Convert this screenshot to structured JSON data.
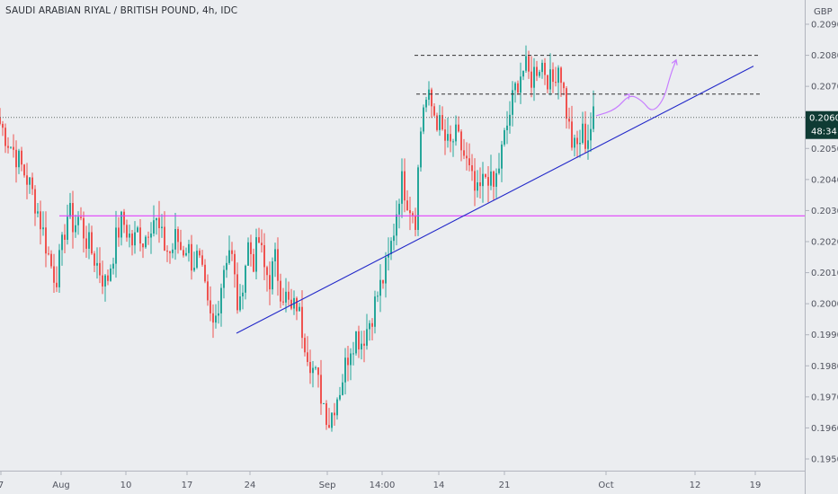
{
  "header": {
    "title": "SAUDI ARABIAN RIYAL / BRITISH POUND, 4h, IDC"
  },
  "price_axis": {
    "currency": "GBP"
  },
  "last_price": {
    "label": "0.2060",
    "countdown": "48:34",
    "value": 0.206
  },
  "colors": {
    "up": "#26a69a",
    "down": "#ef5350",
    "trend": "#2329c9",
    "support": "#e040fb",
    "projection": "#c77dff",
    "badge": "#0f3b34",
    "resistance": "#333333"
  },
  "chart_data": {
    "type": "candlestick",
    "symbol": "SAUDI ARABIAN RIYAL / BRITISH POUND",
    "timeframe": "4h",
    "source": "IDC",
    "y_axis": {
      "label": "GBP",
      "range": [
        0.1945,
        0.2095
      ],
      "ticks": [
        0.195,
        0.196,
        0.197,
        0.198,
        0.199,
        0.2,
        0.201,
        0.202,
        0.203,
        0.204,
        0.205,
        0.206,
        0.207,
        0.208,
        0.209
      ]
    },
    "x_axis": {
      "range": [
        0,
        850
      ],
      "ticks": [
        {
          "label": "7",
          "x": 1
        },
        {
          "label": "Aug",
          "x": 68
        },
        {
          "label": "10",
          "x": 140
        },
        {
          "label": "17",
          "x": 208
        },
        {
          "label": "24",
          "x": 278
        },
        {
          "label": "Sep",
          "x": 364
        },
        {
          "label": "14:00",
          "x": 425
        },
        {
          "label": "14",
          "x": 488
        },
        {
          "label": "21",
          "x": 561
        },
        {
          "label": "Oct",
          "x": 674
        },
        {
          "label": "12",
          "x": 773
        },
        {
          "label": "19",
          "x": 840
        }
      ]
    },
    "price_path": [
      [
        0,
        0.2058
      ],
      [
        8,
        0.2053
      ],
      [
        16,
        0.2049
      ],
      [
        24,
        0.2044
      ],
      [
        32,
        0.2039
      ],
      [
        40,
        0.2032
      ],
      [
        48,
        0.2023
      ],
      [
        56,
        0.2013
      ],
      [
        62,
        0.2008
      ],
      [
        68,
        0.2016
      ],
      [
        72,
        0.2024
      ],
      [
        76,
        0.203
      ],
      [
        82,
        0.2025
      ],
      [
        88,
        0.2028
      ],
      [
        94,
        0.2022
      ],
      [
        100,
        0.2018
      ],
      [
        106,
        0.2014
      ],
      [
        112,
        0.201
      ],
      [
        118,
        0.2006
      ],
      [
        124,
        0.2014
      ],
      [
        130,
        0.2022
      ],
      [
        136,
        0.2027
      ],
      [
        142,
        0.2023
      ],
      [
        148,
        0.2019
      ],
      [
        154,
        0.2024
      ],
      [
        160,
        0.202
      ],
      [
        166,
        0.2026
      ],
      [
        172,
        0.2028
      ],
      [
        178,
        0.2022
      ],
      [
        184,
        0.2018
      ],
      [
        190,
        0.2016
      ],
      [
        196,
        0.2022
      ],
      [
        202,
        0.2017
      ],
      [
        208,
        0.2019
      ],
      [
        214,
        0.2013
      ],
      [
        220,
        0.2015
      ],
      [
        226,
        0.2007
      ],
      [
        232,
        0.1996
      ],
      [
        238,
        0.1992
      ],
      [
        244,
        0.2003
      ],
      [
        250,
        0.2014
      ],
      [
        256,
        0.2019
      ],
      [
        262,
        0.2005
      ],
      [
        266,
        0.1995
      ],
      [
        270,
        0.2008
      ],
      [
        276,
        0.2019
      ],
      [
        282,
        0.2014
      ],
      [
        288,
        0.202
      ],
      [
        294,
        0.2011
      ],
      [
        300,
        0.2008
      ],
      [
        306,
        0.2014
      ],
      [
        312,
        0.2005
      ],
      [
        318,
        0.2002
      ],
      [
        324,
        0.1997
      ],
      [
        330,
        0.2
      ],
      [
        336,
        0.1992
      ],
      [
        342,
        0.1985
      ],
      [
        348,
        0.1979
      ],
      [
        354,
        0.1974
      ],
      [
        360,
        0.1968
      ],
      [
        366,
        0.1962
      ],
      [
        372,
        0.1968
      ],
      [
        378,
        0.1973
      ],
      [
        384,
        0.198
      ],
      [
        390,
        0.1987
      ],
      [
        396,
        0.199
      ],
      [
        402,
        0.1988
      ],
      [
        408,
        0.1992
      ],
      [
        414,
        0.1997
      ],
      [
        420,
        0.2003
      ],
      [
        426,
        0.2008
      ],
      [
        432,
        0.2014
      ],
      [
        438,
        0.2024
      ],
      [
        442,
        0.2032
      ],
      [
        446,
        0.204
      ],
      [
        450,
        0.2037
      ],
      [
        454,
        0.2033
      ],
      [
        458,
        0.2031
      ],
      [
        462,
        0.2028
      ],
      [
        466,
        0.2048
      ],
      [
        470,
        0.2064
      ],
      [
        476,
        0.2066
      ],
      [
        482,
        0.2062
      ],
      [
        488,
        0.2058
      ],
      [
        494,
        0.2053
      ],
      [
        500,
        0.205
      ],
      [
        506,
        0.2054
      ],
      [
        512,
        0.2051
      ],
      [
        518,
        0.2046
      ],
      [
        524,
        0.204
      ],
      [
        530,
        0.2034
      ],
      [
        536,
        0.2038
      ],
      [
        542,
        0.2043
      ],
      [
        548,
        0.2036
      ],
      [
        554,
        0.2043
      ],
      [
        560,
        0.2052
      ],
      [
        566,
        0.206
      ],
      [
        572,
        0.2068
      ],
      [
        578,
        0.2074
      ],
      [
        584,
        0.2076
      ],
      [
        590,
        0.2072
      ],
      [
        596,
        0.2076
      ],
      [
        602,
        0.2078
      ],
      [
        608,
        0.2074
      ],
      [
        614,
        0.207
      ],
      [
        620,
        0.2078
      ],
      [
        624,
        0.2074
      ],
      [
        628,
        0.2066
      ],
      [
        632,
        0.2058
      ],
      [
        636,
        0.2052
      ],
      [
        640,
        0.2049
      ],
      [
        644,
        0.2052
      ],
      [
        648,
        0.2055
      ],
      [
        652,
        0.2052
      ],
      [
        656,
        0.2056
      ],
      [
        660,
        0.206
      ]
    ],
    "annotations": {
      "horizontal_support": {
        "y": 0.20283
      },
      "resistance_lines": [
        {
          "y": 0.208,
          "x": [
            461,
            845
          ]
        },
        {
          "y": 0.20675,
          "x": [
            463,
            845
          ]
        }
      ],
      "last_price_line": {
        "y": 0.206
      },
      "trendline": {
        "from": [
          263,
          0.19905
        ],
        "to": [
          838,
          0.20765
        ]
      },
      "projection_path": [
        [
          663,
          0.20605
        ],
        [
          685,
          0.20625
        ],
        [
          700,
          0.20675
        ],
        [
          714,
          0.20655
        ],
        [
          725,
          0.20615
        ],
        [
          738,
          0.20655
        ],
        [
          746,
          0.2074
        ],
        [
          752,
          0.20785
        ]
      ]
    }
  }
}
